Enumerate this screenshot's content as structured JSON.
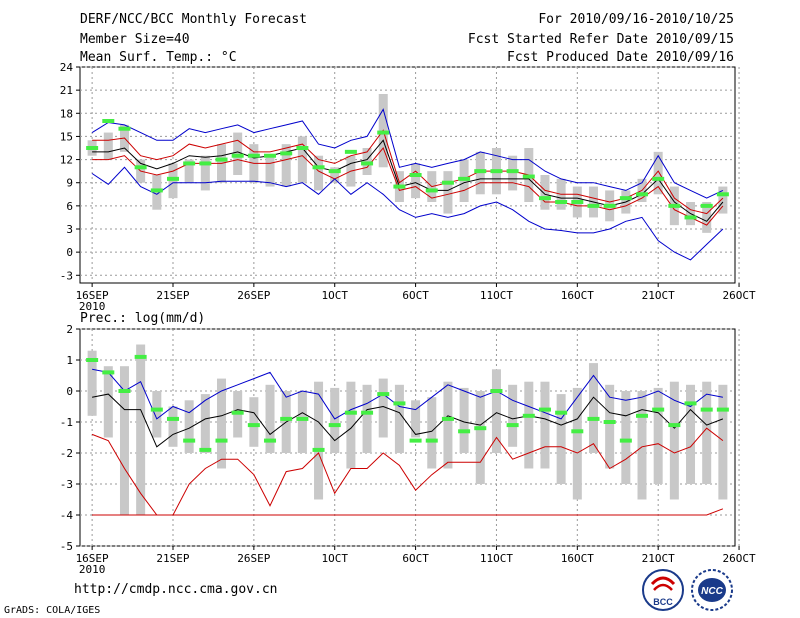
{
  "header": {
    "title": "DERF/NCC/BCC Monthly Forecast",
    "member": "Member Size=40",
    "variable": "Mean Surf. Temp.: °C",
    "period": "For 2010/09/16-2010/10/25",
    "started": "Fcst Started Refer Date 2010/09/15",
    "produced": "Fcst Produced Date 2010/09/16"
  },
  "footer": {
    "url": "http://cmdp.ncc.cma.gov.cn",
    "credit": "GrADS: COLA/IGES"
  },
  "logos": {
    "bcc": "BCC",
    "ncc": "NCC"
  },
  "colors": {
    "max": "#0000cc",
    "min": "#cc0000",
    "mean": "#000000",
    "green": "#44ee44",
    "box": "#c8c8c8"
  },
  "chart_data": [
    {
      "type": "line",
      "title": "Mean Surf. Temp.: °C",
      "x": [
        1,
        2,
        3,
        4,
        5,
        6,
        7,
        8,
        9,
        10,
        11,
        12,
        13,
        14,
        15,
        16,
        17,
        18,
        19,
        20,
        21,
        22,
        23,
        24,
        25,
        26,
        27,
        28,
        29,
        30,
        31,
        32,
        33,
        34,
        35,
        36,
        37,
        38,
        39,
        40
      ],
      "xtick_labels": [
        "16SEP",
        "21SEP",
        "26SEP",
        "1OCT",
        "6OCT",
        "11OCT",
        "16OCT",
        "21OCT",
        "26OCT"
      ],
      "xtick_year": "2010",
      "ylim": [
        -4,
        24
      ],
      "yticks": [
        -3,
        0,
        3,
        6,
        9,
        12,
        15,
        18,
        21,
        24
      ],
      "series": [
        {
          "name": "ensemble max",
          "color": "#0000cc",
          "values": [
            15.5,
            16.8,
            16.5,
            15.5,
            14.5,
            14.5,
            16.0,
            15.5,
            16.0,
            16.5,
            15.5,
            16.0,
            16.5,
            17.0,
            14.0,
            13.5,
            14.5,
            15.0,
            18.5,
            11.0,
            11.5,
            11.0,
            11.5,
            12.0,
            13.0,
            12.5,
            12.0,
            12.0,
            10.5,
            9.5,
            9.0,
            9.0,
            8.5,
            8.0,
            9.0,
            12.5,
            9.0,
            8.0,
            7.0,
            8.0
          ]
        },
        {
          "name": "upper",
          "color": "#cc0000",
          "values": [
            14.5,
            14.5,
            14.8,
            12.5,
            12.0,
            12.5,
            14.0,
            13.5,
            14.0,
            14.5,
            13.0,
            13.0,
            13.5,
            14.0,
            12.0,
            11.5,
            12.5,
            13.0,
            15.8,
            9.0,
            10.5,
            8.5,
            9.0,
            9.5,
            10.5,
            10.5,
            10.5,
            10.0,
            8.0,
            7.5,
            7.5,
            7.0,
            6.5,
            7.0,
            8.0,
            10.5,
            7.0,
            5.5,
            5.0,
            7.0
          ]
        },
        {
          "name": "ensemble mean",
          "color": "#000000",
          "values": [
            13.0,
            13.0,
            13.5,
            11.5,
            10.8,
            11.5,
            12.5,
            12.3,
            12.5,
            13.0,
            12.2,
            12.5,
            13.0,
            13.5,
            11.0,
            10.5,
            11.5,
            12.0,
            14.5,
            8.5,
            9.0,
            8.0,
            8.0,
            9.0,
            9.5,
            9.5,
            9.5,
            9.5,
            7.5,
            7.0,
            7.0,
            6.5,
            6.0,
            6.5,
            7.5,
            9.5,
            6.5,
            5.0,
            4.0,
            6.5
          ]
        },
        {
          "name": "lower",
          "color": "#cc0000",
          "values": [
            12.0,
            12.0,
            12.5,
            10.5,
            10.0,
            10.5,
            11.5,
            11.5,
            11.5,
            12.0,
            11.5,
            11.5,
            12.0,
            12.5,
            10.5,
            9.5,
            10.5,
            11.0,
            13.5,
            8.0,
            8.5,
            7.0,
            7.5,
            8.0,
            9.0,
            9.0,
            9.0,
            8.5,
            6.5,
            6.5,
            6.0,
            6.0,
            5.5,
            6.0,
            7.0,
            8.5,
            5.5,
            4.5,
            3.5,
            6.0
          ]
        },
        {
          "name": "ensemble min",
          "color": "#0000cc",
          "values": [
            10.2,
            8.8,
            11.0,
            8.5,
            7.5,
            9.0,
            9.0,
            9.0,
            9.2,
            9.2,
            9.2,
            9.0,
            8.5,
            9.0,
            7.5,
            9.5,
            7.5,
            9.0,
            7.5,
            5.5,
            4.5,
            5.0,
            4.5,
            5.0,
            6.0,
            6.5,
            5.5,
            4.0,
            3.0,
            2.8,
            2.5,
            2.5,
            3.0,
            4.0,
            4.5,
            1.5,
            0.0,
            -1.0,
            1.0,
            3.0
          ]
        }
      ],
      "bars_low": [
        12.5,
        12.0,
        13.0,
        9.0,
        5.5,
        7.0,
        9.0,
        8.0,
        9.0,
        10.0,
        9.0,
        8.5,
        8.5,
        9.0,
        8.0,
        9.0,
        8.5,
        10.0,
        11.0,
        6.5,
        7.0,
        6.5,
        5.0,
        6.5,
        7.5,
        7.5,
        8.0,
        6.5,
        5.5,
        5.5,
        4.5,
        4.5,
        4.0,
        5.0,
        6.5,
        7.5,
        3.5,
        3.5,
        2.5,
        5.0
      ],
      "bars_high": [
        14.5,
        15.5,
        16.5,
        12.0,
        10.0,
        11.5,
        12.0,
        12.5,
        14.0,
        15.5,
        14.0,
        12.5,
        14.0,
        15.0,
        12.5,
        11.0,
        12.5,
        13.5,
        20.5,
        10.5,
        11.5,
        10.5,
        10.5,
        12.0,
        13.0,
        13.5,
        12.5,
        13.5,
        10.0,
        9.5,
        8.5,
        8.5,
        8.0,
        8.0,
        9.5,
        13.0,
        8.5,
        6.5,
        6.5,
        8.5
      ],
      "green_marks": [
        13.5,
        17.0,
        16.0,
        11.0,
        8.0,
        9.5,
        11.5,
        11.5,
        12.0,
        12.5,
        12.5,
        12.5,
        12.8,
        13.5,
        11.0,
        10.5,
        13.0,
        11.5,
        15.5,
        8.5,
        10.0,
        8.0,
        9.0,
        9.5,
        10.5,
        10.5,
        10.5,
        9.8,
        7.0,
        6.5,
        6.5,
        6.0,
        6.0,
        7.0,
        7.5,
        9.5,
        6.0,
        4.5,
        6.0,
        7.5
      ]
    },
    {
      "type": "line",
      "title": "Prec.: log(mm/d)",
      "x": [
        1,
        2,
        3,
        4,
        5,
        6,
        7,
        8,
        9,
        10,
        11,
        12,
        13,
        14,
        15,
        16,
        17,
        18,
        19,
        20,
        21,
        22,
        23,
        24,
        25,
        26,
        27,
        28,
        29,
        30,
        31,
        32,
        33,
        34,
        35,
        36,
        37,
        38,
        39,
        40
      ],
      "xtick_labels": [
        "16SEP",
        "21SEP",
        "26SEP",
        "1OCT",
        "6OCT",
        "11OCT",
        "16OCT",
        "21OCT",
        "26OCT"
      ],
      "xtick_year": "2010",
      "ylim": [
        -5,
        2
      ],
      "yticks": [
        -5,
        -4,
        -3,
        -2,
        -1,
        0,
        1,
        2
      ],
      "series": [
        {
          "name": "ensemble max",
          "color": "#0000cc",
          "values": [
            0.7,
            0.6,
            0.0,
            0.3,
            -0.9,
            -0.5,
            -0.7,
            -0.3,
            0.0,
            0.2,
            0.4,
            0.6,
            -0.2,
            0.0,
            -0.1,
            -0.9,
            -0.6,
            -0.4,
            -0.1,
            -0.5,
            -0.6,
            -0.2,
            0.2,
            0.0,
            -0.2,
            0.0,
            -0.3,
            -0.5,
            -0.7,
            -0.9,
            -0.2,
            0.5,
            -0.2,
            -0.3,
            -0.2,
            0.0,
            -0.3,
            -0.5,
            -0.1,
            -0.2
          ]
        },
        {
          "name": "ensemble mean",
          "color": "#000000",
          "values": [
            -0.2,
            -0.1,
            -0.6,
            -0.6,
            -1.8,
            -1.4,
            -1.2,
            -0.9,
            -0.8,
            -0.6,
            -0.7,
            -1.4,
            -1.0,
            -0.7,
            -1.0,
            -1.6,
            -1.2,
            -0.6,
            -0.5,
            -0.7,
            -1.4,
            -1.3,
            -0.8,
            -1.0,
            -1.1,
            -0.7,
            -0.9,
            -0.8,
            -0.9,
            -1.1,
            -0.9,
            -0.2,
            -0.7,
            -0.8,
            -0.6,
            -0.7,
            -1.2,
            -0.6,
            -1.1,
            -0.9
          ]
        },
        {
          "name": "ensemble min",
          "color": "#cc0000",
          "values": [
            -1.4,
            -1.6,
            -2.5,
            -3.3,
            -4.0,
            -4.0,
            -3.0,
            -2.5,
            -2.2,
            -2.2,
            -2.7,
            -3.7,
            -2.6,
            -2.5,
            -2.0,
            -3.3,
            -2.5,
            -2.5,
            -2.0,
            -2.4,
            -3.2,
            -2.7,
            -2.3,
            -2.3,
            -2.3,
            -1.5,
            -2.2,
            -2.0,
            -1.8,
            -1.8,
            -2.0,
            -1.7,
            -2.5,
            -2.2,
            -1.8,
            -1.7,
            -2.0,
            -1.8,
            -1.2,
            -1.6
          ]
        },
        {
          "name": "lower bound",
          "color": "#cc0000",
          "values": [
            -4,
            -4,
            -4,
            -4,
            -4,
            -4,
            -4,
            -4,
            -4,
            -4,
            -4,
            -4,
            -4,
            -4,
            -4,
            -4,
            -4,
            -4,
            -4,
            -4,
            -4,
            -4,
            -4,
            -4,
            -4,
            -4,
            -4,
            -4,
            -4,
            -4,
            -4,
            -4,
            -4,
            -4,
            -4,
            -4,
            -4,
            -4,
            -4,
            -3.8
          ]
        }
      ],
      "bars_low": [
        -0.8,
        -1.5,
        -4.0,
        -4.0,
        -1.5,
        -1.8,
        -2.0,
        -2.0,
        -2.5,
        -1.5,
        -1.8,
        -2.0,
        -2.0,
        -2.0,
        -3.5,
        -2.0,
        -2.5,
        -2.0,
        -1.5,
        -2.0,
        -1.5,
        -2.5,
        -2.5,
        -2.0,
        -3.0,
        -2.0,
        -1.8,
        -2.5,
        -2.5,
        -3.0,
        -3.5,
        -2.0,
        -2.5,
        -3.0,
        -3.5,
        -3.0,
        -3.5,
        -3.0,
        -3.0,
        -3.5
      ],
      "bars_high": [
        1.3,
        0.8,
        0.8,
        1.5,
        0.0,
        -0.5,
        -0.3,
        -0.1,
        0.4,
        0.0,
        -0.2,
        0.2,
        0.0,
        0.0,
        0.3,
        0.1,
        0.3,
        0.2,
        0.4,
        0.2,
        -0.3,
        -0.2,
        0.3,
        0.1,
        0.0,
        0.7,
        0.2,
        0.3,
        0.3,
        -0.1,
        0.1,
        0.9,
        0.2,
        0.0,
        0.0,
        0.1,
        0.3,
        0.2,
        0.3,
        0.2
      ],
      "green_marks": [
        1.0,
        0.6,
        0.0,
        1.1,
        -0.6,
        -0.9,
        -1.6,
        -1.9,
        -1.6,
        -0.7,
        -1.1,
        -1.6,
        -0.9,
        -0.9,
        -1.9,
        -1.1,
        -0.7,
        -0.7,
        -0.1,
        -0.4,
        -1.6,
        -1.6,
        -0.9,
        -1.3,
        -1.2,
        0.0,
        -1.1,
        -0.8,
        -0.6,
        -0.7,
        -1.3,
        -0.9,
        -1.0,
        -1.6,
        -0.8,
        -0.6,
        -1.1,
        -0.4,
        -0.6,
        -0.6
      ]
    }
  ]
}
